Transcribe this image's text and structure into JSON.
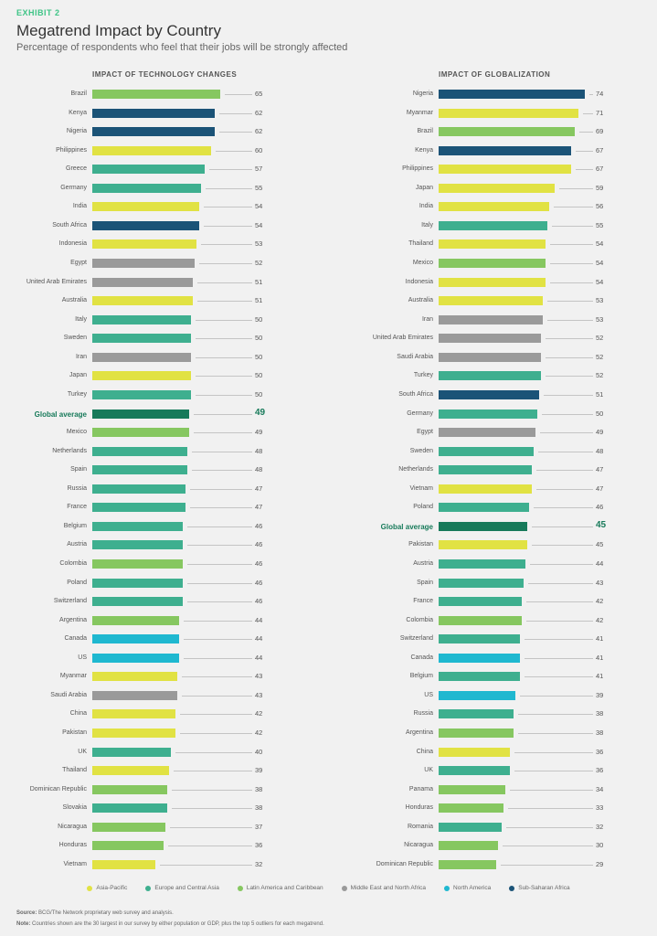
{
  "header": {
    "exhibit": "EXHIBIT 2",
    "title": "Megatrend Impact by Country",
    "subtitle": "Percentage of respondents who feel that their jobs will be strongly affected"
  },
  "colors": {
    "AP": "#e1e243",
    "EU": "#3eaf8f",
    "LA": "#86c760",
    "ME": "#9a9a9a",
    "NA": "#1fb8d0",
    "SS": "#1b5377",
    "GA": "#177a5a"
  },
  "legend": [
    {
      "key": "AP",
      "label": "Asia-Pacific"
    },
    {
      "key": "EU",
      "label": "Europe and Central Asia"
    },
    {
      "key": "LA",
      "label": "Latin America and Caribbean"
    },
    {
      "key": "ME",
      "label": "Middle East and North Africa"
    },
    {
      "key": "NA",
      "label": "North America"
    },
    {
      "key": "SS",
      "label": "Sub-Saharan Africa"
    }
  ],
  "footer": {
    "source_label": "Source:",
    "source": " BCG/The Network proprietary web survey and analysis.",
    "note_label": "Note:",
    "note": " Countries shown are the 30 largest in our survey by either population or GDP, plus the top 5 outliers for each megatrend."
  },
  "chart_data": [
    {
      "type": "bar",
      "orientation": "horizontal",
      "title": "IMPACT OF TECHNOLOGY CHANGES",
      "xlim": [
        0,
        100
      ],
      "categories": [
        "Brazil",
        "Kenya",
        "Nigeria",
        "Philippines",
        "Greece",
        "Germany",
        "India",
        "South Africa",
        "Indonesia",
        "Egypt",
        "United Arab Emirates",
        "Australia",
        "Italy",
        "Sweden",
        "Iran",
        "Japan",
        "Turkey",
        "Global average",
        "Mexico",
        "Netherlands",
        "Spain",
        "Russia",
        "France",
        "Belgium",
        "Austria",
        "Colombia",
        "Poland",
        "Switzerland",
        "Argentina",
        "Canada",
        "US",
        "Myanmar",
        "Saudi Arabia",
        "China",
        "Pakistan",
        "UK",
        "Thailand",
        "Dominican Republic",
        "Slovakia",
        "Nicaragua",
        "Honduras",
        "Vietnam"
      ],
      "values": [
        65,
        62,
        62,
        60,
        57,
        55,
        54,
        54,
        53,
        52,
        51,
        51,
        50,
        50,
        50,
        50,
        50,
        49,
        49,
        48,
        48,
        47,
        47,
        46,
        46,
        46,
        46,
        46,
        44,
        44,
        44,
        43,
        43,
        42,
        42,
        40,
        39,
        38,
        38,
        37,
        36,
        32
      ],
      "regions": [
        "LA",
        "SS",
        "SS",
        "AP",
        "EU",
        "EU",
        "AP",
        "SS",
        "AP",
        "ME",
        "ME",
        "AP",
        "EU",
        "EU",
        "ME",
        "AP",
        "EU",
        "GA",
        "LA",
        "EU",
        "EU",
        "EU",
        "EU",
        "EU",
        "EU",
        "LA",
        "EU",
        "EU",
        "LA",
        "NA",
        "NA",
        "AP",
        "ME",
        "AP",
        "AP",
        "EU",
        "AP",
        "LA",
        "EU",
        "LA",
        "LA",
        "AP"
      ]
    },
    {
      "type": "bar",
      "orientation": "horizontal",
      "title": "IMPACT OF GLOBALIZATION",
      "xlim": [
        0,
        100
      ],
      "categories": [
        "Nigeria",
        "Myanmar",
        "Brazil",
        "Kenya",
        "Philippines",
        "Japan",
        "India",
        "Italy",
        "Thailand",
        "Mexico",
        "Indonesia",
        "Australia",
        "Iran",
        "United Arab Emirates",
        "Saudi Arabia",
        "Turkey",
        "South Africa",
        "Germany",
        "Egypt",
        "Sweden",
        "Netherlands",
        "Vietnam",
        "Poland",
        "Global average",
        "Pakistan",
        "Austria",
        "Spain",
        "France",
        "Colombia",
        "Switzerland",
        "Canada",
        "Belgium",
        "US",
        "Russia",
        "Argentina",
        "China",
        "UK",
        "Panama",
        "Honduras",
        "Romania",
        "Nicaragua",
        "Dominican Republic"
      ],
      "values": [
        74,
        71,
        69,
        67,
        67,
        59,
        56,
        55,
        54,
        54,
        54,
        53,
        53,
        52,
        52,
        52,
        51,
        50,
        49,
        48,
        47,
        47,
        46,
        45,
        45,
        44,
        43,
        42,
        42,
        41,
        41,
        41,
        39,
        38,
        38,
        36,
        36,
        34,
        33,
        32,
        30,
        29
      ],
      "regions": [
        "SS",
        "AP",
        "LA",
        "SS",
        "AP",
        "AP",
        "AP",
        "EU",
        "AP",
        "LA",
        "AP",
        "AP",
        "ME",
        "ME",
        "ME",
        "EU",
        "SS",
        "EU",
        "ME",
        "EU",
        "EU",
        "AP",
        "EU",
        "GA",
        "AP",
        "EU",
        "EU",
        "EU",
        "LA",
        "EU",
        "NA",
        "EU",
        "NA",
        "EU",
        "LA",
        "AP",
        "EU",
        "LA",
        "LA",
        "EU",
        "LA",
        "LA"
      ]
    }
  ]
}
